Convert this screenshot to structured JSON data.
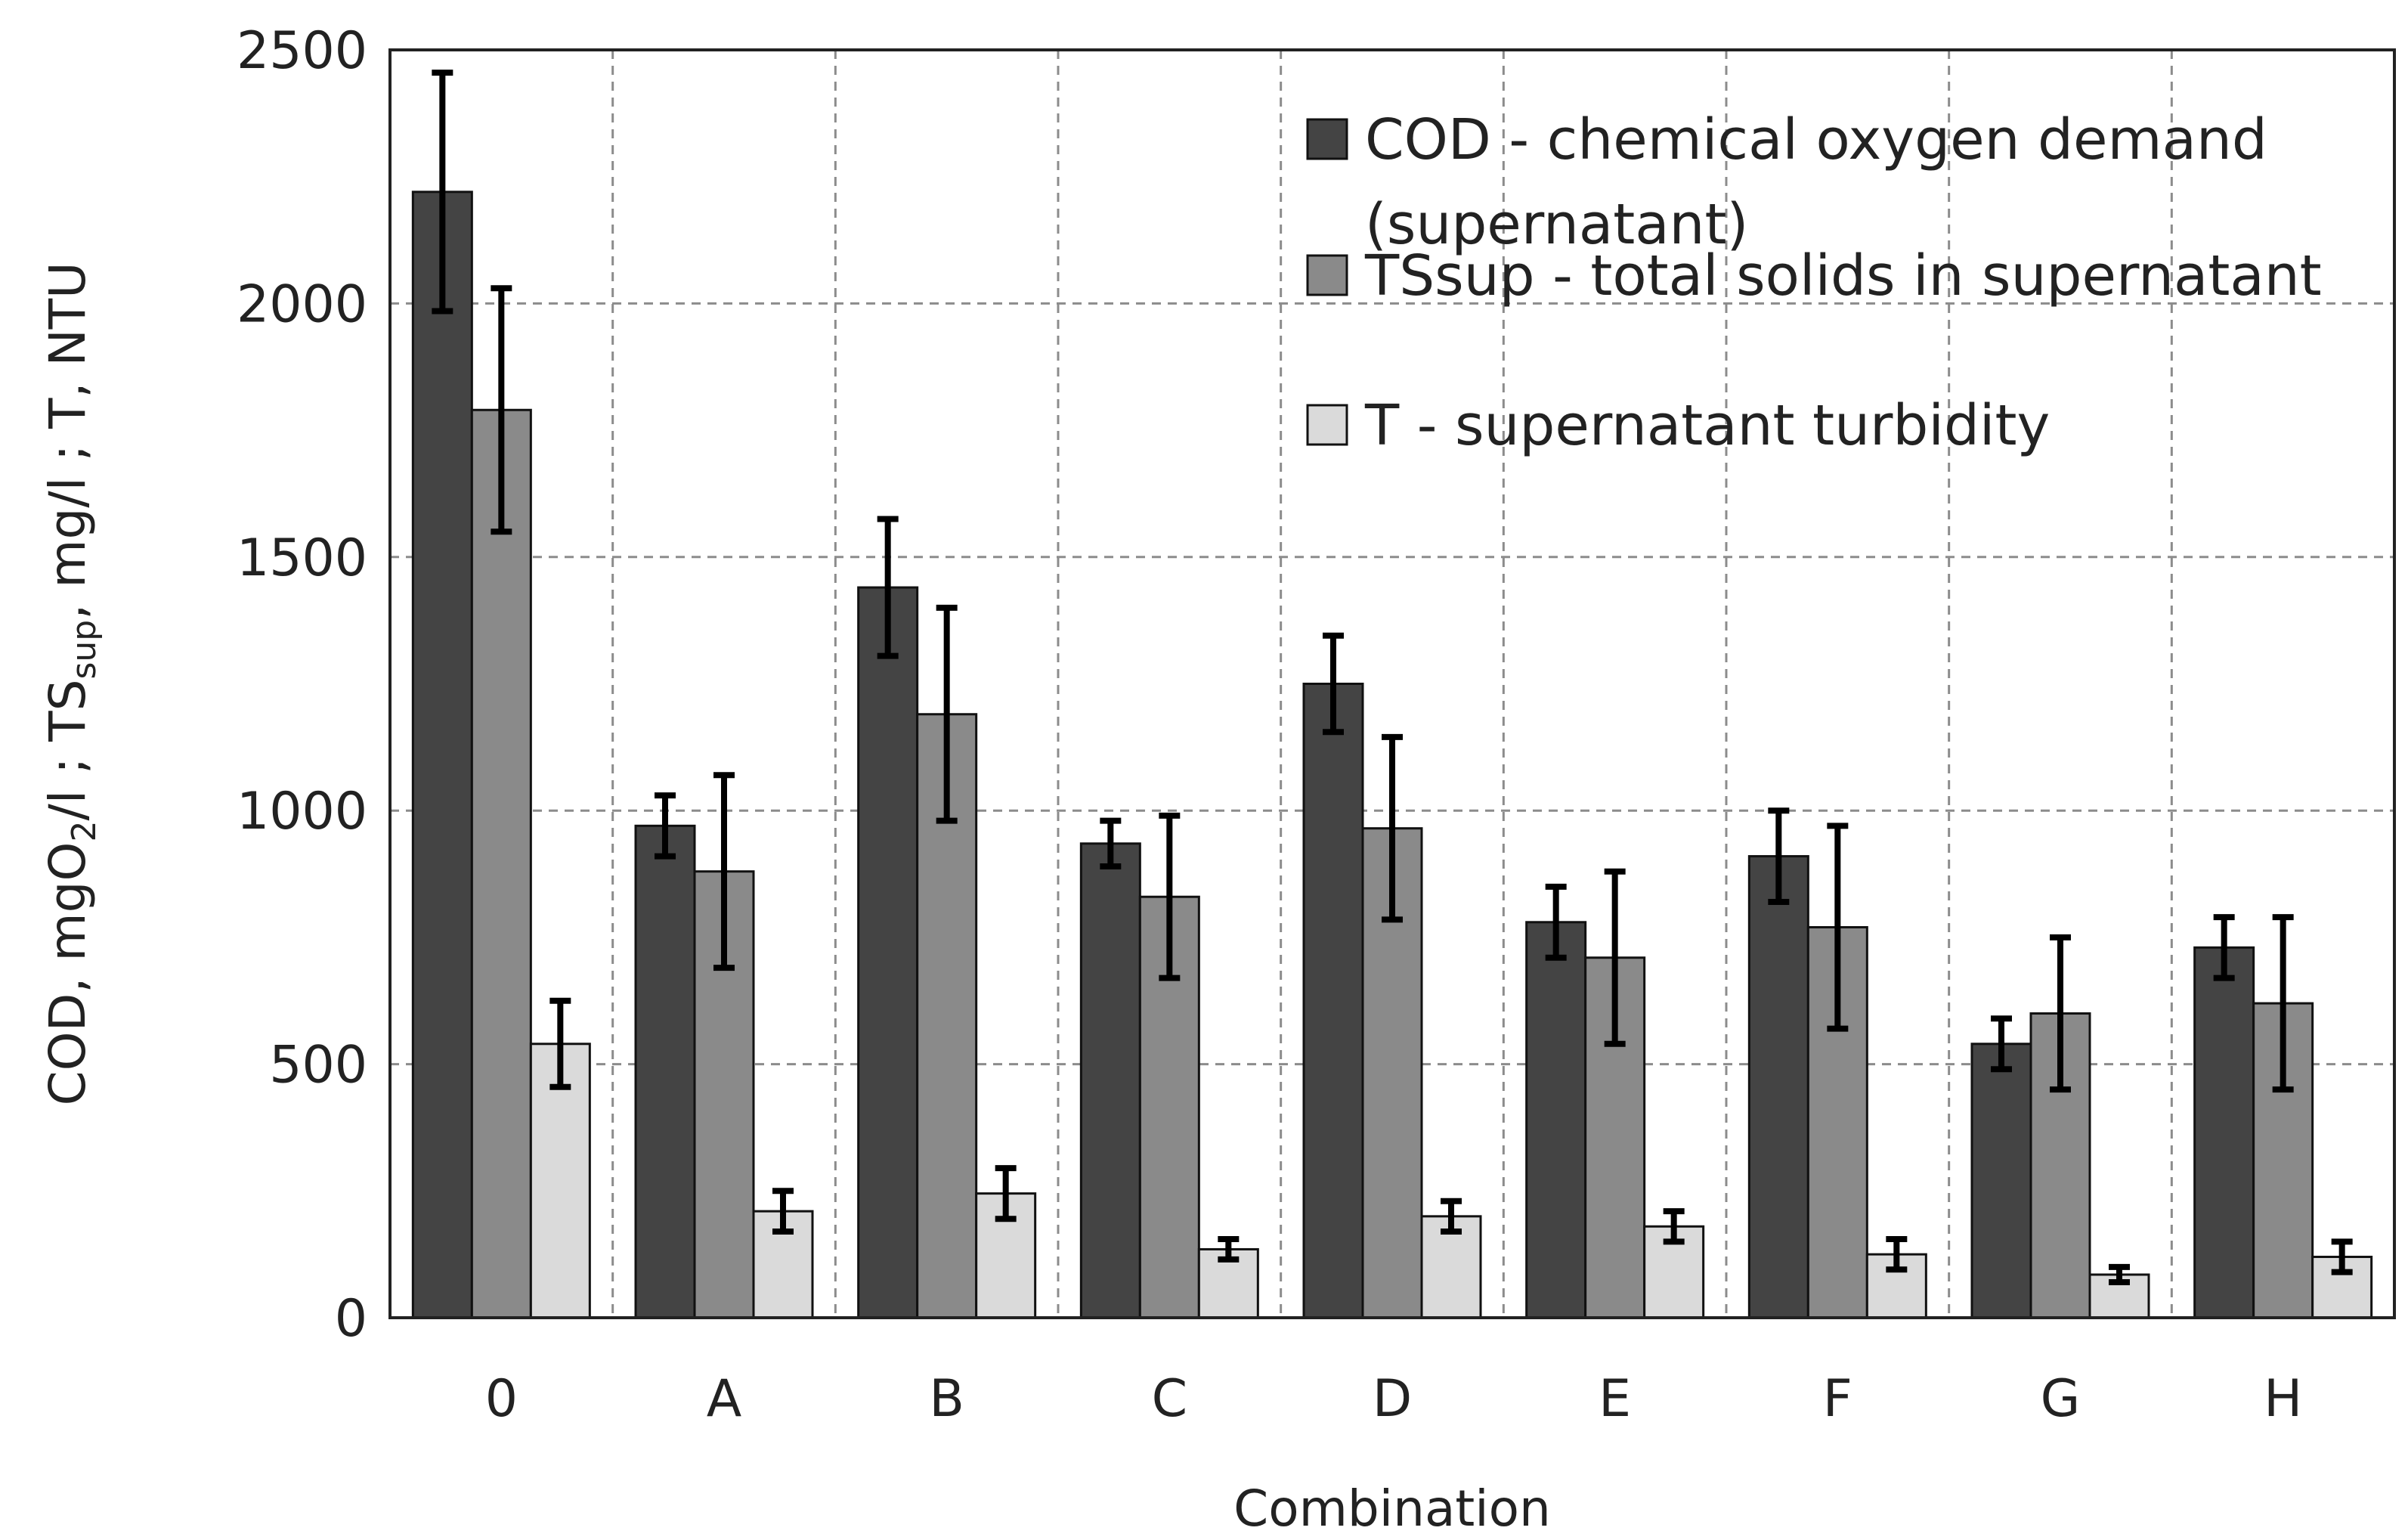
{
  "chart_data": {
    "type": "bar",
    "title": "",
    "xlabel": "Combination",
    "ylabel": {
      "parts": [
        {
          "text": "COD, mgO",
          "sub": false
        },
        {
          "text": "2",
          "sub": true
        },
        {
          "text": "/l ; TS",
          "sub": false
        },
        {
          "text": "sup",
          "sub": true
        },
        {
          "text": ", mg/l ; T, NTU",
          "sub": false
        }
      ]
    },
    "categories": [
      "0",
      "A",
      "B",
      "C",
      "D",
      "E",
      "F",
      "G",
      "H"
    ],
    "ylim": [
      0,
      2500
    ],
    "yticks": [
      0,
      500,
      1000,
      1500,
      2000,
      2500
    ],
    "grid": true,
    "legend_position": "top-right",
    "series": [
      {
        "name": "COD - chemical oxygen demand (supernatant)",
        "legend_lines": [
          "COD - chemical oxygen demand",
          "(supernatant)"
        ],
        "color": "#444444",
        "values": [
          2220,
          970,
          1440,
          935,
          1250,
          780,
          910,
          540,
          730
        ],
        "errors": [
          235,
          60,
          135,
          45,
          95,
          70,
          90,
          50,
          60
        ]
      },
      {
        "name": "TSsup - total solids in supernatant",
        "legend_lines": [
          "TSsup - total solids in supernatant"
        ],
        "color": "#8a8a8a",
        "values": [
          1790,
          880,
          1190,
          830,
          965,
          710,
          770,
          600,
          620
        ],
        "errors": [
          240,
          190,
          210,
          160,
          180,
          170,
          200,
          150,
          170
        ]
      },
      {
        "name": "T - supernatant turbidity",
        "legend_lines": [
          "T - supernatant turbidity"
        ],
        "color": "#dadada",
        "values": [
          540,
          210,
          245,
          135,
          200,
          180,
          125,
          85,
          120
        ],
        "errors": [
          85,
          40,
          50,
          20,
          30,
          30,
          30,
          15,
          30
        ]
      }
    ]
  }
}
